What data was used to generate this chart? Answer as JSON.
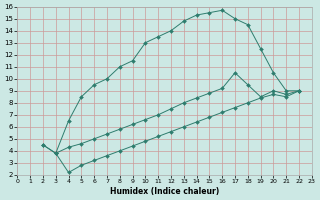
{
  "xlabel": "Humidex (Indice chaleur)",
  "xlim": [
    0,
    23
  ],
  "ylim": [
    2,
    16
  ],
  "xticks": [
    0,
    1,
    2,
    3,
    4,
    5,
    6,
    7,
    8,
    9,
    10,
    11,
    12,
    13,
    14,
    15,
    16,
    17,
    18,
    19,
    20,
    21,
    22,
    23
  ],
  "yticks": [
    2,
    3,
    4,
    5,
    6,
    7,
    8,
    9,
    10,
    11,
    12,
    13,
    14,
    15,
    16
  ],
  "bg_color": "#cce8e4",
  "grid_color": "#cc9999",
  "line_color": "#2e7d6e",
  "line1_x": [
    2,
    3,
    4,
    5,
    6,
    7,
    8,
    9,
    10,
    11,
    12,
    13,
    14,
    15,
    16,
    17,
    18,
    19,
    20,
    21,
    22
  ],
  "line1_y": [
    4.5,
    3.8,
    6.5,
    8.5,
    9.5,
    10.0,
    11.0,
    11.5,
    13.0,
    13.5,
    14.0,
    14.8,
    15.3,
    15.5,
    15.7,
    15.0,
    14.5,
    12.5,
    10.5,
    9.0,
    9.0
  ],
  "line2_x": [
    2,
    3,
    4,
    5,
    6,
    7,
    8,
    9,
    10,
    11,
    12,
    13,
    14,
    15,
    16,
    17,
    18,
    19,
    20,
    21,
    22
  ],
  "line2_y": [
    4.5,
    3.8,
    4.3,
    4.6,
    5.0,
    5.4,
    5.8,
    6.2,
    6.6,
    7.0,
    7.5,
    8.0,
    8.4,
    8.8,
    9.2,
    10.5,
    9.5,
    8.5,
    9.0,
    8.7,
    9.0
  ],
  "line3_x": [
    3,
    4,
    5,
    6,
    7,
    8,
    9,
    10,
    11,
    12,
    13,
    14,
    15,
    16,
    17,
    18,
    19,
    20,
    21,
    22
  ],
  "line3_y": [
    3.8,
    2.2,
    2.8,
    3.2,
    3.6,
    4.0,
    4.4,
    4.8,
    5.2,
    5.6,
    6.0,
    6.4,
    6.8,
    7.2,
    7.6,
    8.0,
    8.4,
    8.7,
    8.5,
    9.0
  ]
}
